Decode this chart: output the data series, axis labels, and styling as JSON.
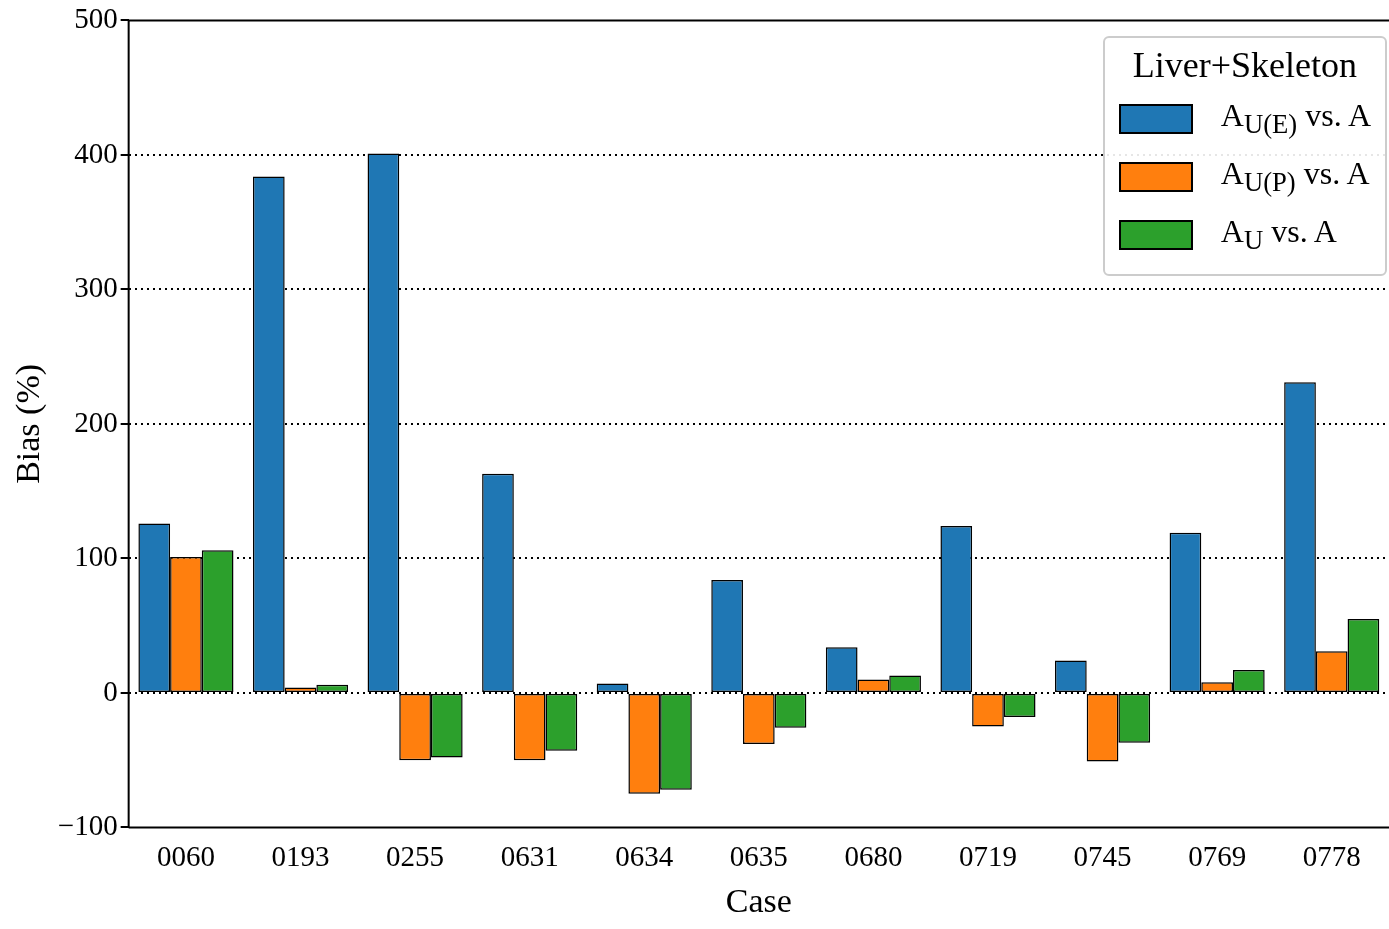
{
  "chart_data": {
    "type": "bar",
    "xlabel": "Case",
    "ylabel": "Bias (%)",
    "legend_title": "Liver+Skeleton",
    "legend": "top right",
    "grid": "y",
    "categories": [
      "0060",
      "0193",
      "0255",
      "0631",
      "0634",
      "0635",
      "0680",
      "0719",
      "0745",
      "0769",
      "0778"
    ],
    "ylim": [
      -100,
      500
    ],
    "yticks": [
      {
        "value": -100,
        "label": "−100"
      },
      0,
      100,
      200,
      300,
      400,
      500
    ],
    "series": [
      {
        "name": "A$_{U(E)}$ vs. A",
        "color": "#1f77b4",
        "values": [
          126,
          384,
          401,
          163,
          7,
          84,
          34,
          124,
          24,
          119,
          231
        ]
      },
      {
        "name": "A$_{U(P)}$ vs. A",
        "color": "#ff7f0e",
        "values": [
          101,
          4,
          -50,
          -50,
          -75,
          -38,
          10,
          -25,
          -51,
          8,
          31
        ]
      },
      {
        "name": "A$_{U}$ vs. A",
        "color": "#2ca02c",
        "values": [
          106,
          6,
          -48,
          -43,
          -72,
          -26,
          13,
          -18,
          -37,
          17,
          55
        ]
      }
    ]
  }
}
